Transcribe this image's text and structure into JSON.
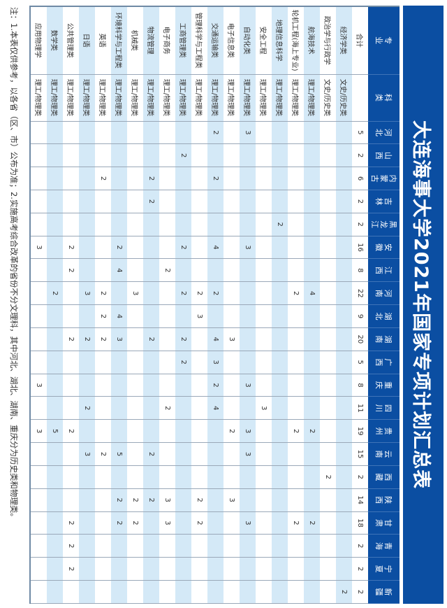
{
  "title": "大连海事大学2021年国家专项计划汇总表",
  "header": {
    "major": "专业",
    "category": "科类"
  },
  "provinces": [
    "河北",
    "山西",
    "内蒙古",
    "吉林",
    "黑龙江",
    "安徽",
    "江西",
    "河南",
    "湖北",
    "湖南",
    "广西",
    "重庆",
    "四川",
    "贵州",
    "云南",
    "西藏",
    "陕西",
    "甘肃",
    "青海",
    "宁夏",
    "新疆"
  ],
  "colors": {
    "header": "#0b4ea2",
    "stripe": "#d4e9f7"
  },
  "rows": [
    {
      "major": "合计",
      "category": "",
      "values": [
        "5",
        "2",
        "6",
        "2",
        "2",
        "16",
        "8",
        "22",
        "9",
        "20",
        "5",
        "8",
        "11",
        "19",
        "15",
        "2",
        "14",
        "18",
        "2",
        "2",
        "2"
      ]
    },
    {
      "major": "经济学类",
      "category": "文史/历史类",
      "values": [
        "",
        "",
        "",
        "",
        "",
        "",
        "",
        "",
        "",
        "",
        "",
        "",
        "",
        "",
        "",
        "",
        "",
        "",
        "",
        "",
        "2"
      ]
    },
    {
      "major": "政治学与行政学",
      "category": "文史/历史类",
      "values": [
        "",
        "",
        "",
        "",
        "",
        "",
        "",
        "",
        "",
        "",
        "",
        "",
        "",
        "",
        "",
        "2",
        "",
        "",
        "",
        "",
        ""
      ]
    },
    {
      "major": "航海技术",
      "category": "理工/物理类",
      "values": [
        "",
        "",
        "",
        "",
        "",
        "",
        "",
        "4",
        "",
        "",
        "",
        "",
        "",
        "2",
        "",
        "",
        "",
        "2",
        "",
        "",
        ""
      ]
    },
    {
      "major": "轮机工程(海上专业)",
      "category": "理工/物理类",
      "values": [
        "",
        "",
        "",
        "",
        "",
        "",
        "",
        "2",
        "",
        "",
        "",
        "",
        "",
        "2",
        "",
        "",
        "",
        "2",
        "",
        "",
        ""
      ]
    },
    {
      "major": "地理信息科学",
      "category": "理工/物理类",
      "values": [
        "",
        "",
        "",
        "",
        "2",
        "",
        "",
        "",
        "",
        "",
        "",
        "",
        "",
        "",
        "",
        "",
        "",
        "",
        "",
        "",
        ""
      ]
    },
    {
      "major": "安全工程",
      "category": "理工/物理类",
      "values": [
        "",
        "",
        "",
        "",
        "",
        "",
        "",
        "",
        "",
        "",
        "",
        "",
        "3",
        "",
        "",
        "",
        "",
        "",
        "",
        "",
        ""
      ]
    },
    {
      "major": "自动化类",
      "category": "理工/物理类",
      "values": [
        "3",
        "",
        "",
        "",
        "",
        "3",
        "",
        "",
        "",
        "",
        "",
        "3",
        "",
        "3",
        "3",
        "",
        "",
        "3",
        "",
        "",
        ""
      ]
    },
    {
      "major": "电子信息类",
      "category": "理工/物理类",
      "values": [
        "",
        "",
        "",
        "",
        "",
        "",
        "",
        "",
        "",
        "3",
        "",
        "",
        "",
        "2",
        "",
        "",
        "3",
        "",
        "",
        "",
        ""
      ]
    },
    {
      "major": "交通运输类",
      "category": "理工/物理类",
      "values": [
        "2",
        "",
        "2",
        "",
        "",
        "4",
        "",
        "2",
        "",
        "4",
        "3",
        "2",
        "4",
        "",
        "",
        "",
        "",
        "",
        "",
        "",
        ""
      ]
    },
    {
      "major": "管理科学与工程类",
      "category": "理工/物理类",
      "values": [
        "",
        "",
        "",
        "",
        "",
        "",
        "",
        "2",
        "3",
        "",
        "",
        "",
        "",
        "",
        "",
        "",
        "2",
        "2",
        "",
        "",
        ""
      ]
    },
    {
      "major": "工商管理类",
      "category": "理工/物理类",
      "values": [
        "",
        "2",
        "",
        "",
        "",
        "2",
        "",
        "2",
        "",
        "2",
        "2",
        "",
        "",
        "",
        "",
        "",
        "",
        "",
        "",
        "",
        ""
      ]
    },
    {
      "major": "电子商务",
      "category": "理工/物理类",
      "values": [
        "",
        "",
        "",
        "",
        "",
        "",
        "2",
        "",
        "",
        "",
        "",
        "",
        "2",
        "",
        "",
        "",
        "3",
        "3",
        "",
        "",
        ""
      ]
    },
    {
      "major": "物流管理",
      "category": "理工/物理类",
      "values": [
        "",
        "",
        "2",
        "2",
        "",
        "",
        "",
        "",
        "",
        "2",
        "",
        "",
        "",
        "",
        "2",
        "",
        "2",
        "",
        "",
        "",
        ""
      ]
    },
    {
      "major": "机械类",
      "category": "理工/物理类",
      "values": [
        "",
        "",
        "",
        "",
        "",
        "",
        "",
        "3",
        "",
        "",
        "",
        "",
        "",
        "",
        "",
        "",
        "2",
        "2",
        "",
        "",
        ""
      ]
    },
    {
      "major": "环境科学与工程类",
      "category": "理工/物理类",
      "values": [
        "",
        "",
        "",
        "",
        "",
        "2",
        "4",
        "",
        "4",
        "3",
        "",
        "",
        "",
        "",
        "5",
        "",
        "2",
        "2",
        "",
        "",
        ""
      ]
    },
    {
      "major": "英语",
      "category": "理工/物理类",
      "values": [
        "",
        "",
        "2",
        "",
        "",
        "",
        "",
        "2",
        "2",
        "2",
        "",
        "",
        "",
        "",
        "2",
        "",
        "",
        "",
        "",
        "",
        ""
      ]
    },
    {
      "major": "日语",
      "category": "理工/物理类",
      "values": [
        "",
        "",
        "",
        "",
        "",
        "",
        "",
        "3",
        "",
        "2",
        "",
        "",
        "2",
        "",
        "3",
        "",
        "",
        "",
        "",
        "",
        ""
      ]
    },
    {
      "major": "公共管理类",
      "category": "理工/物理类",
      "values": [
        "",
        "",
        "",
        "",
        "",
        "2",
        "2",
        "",
        "",
        "2",
        "",
        "",
        "",
        "2",
        "",
        "",
        "",
        "2",
        "2",
        "2",
        ""
      ]
    },
    {
      "major": "数学类",
      "category": "理工/物理类",
      "values": [
        "",
        "",
        "",
        "",
        "",
        "",
        "",
        "2",
        "",
        "",
        "",
        "",
        "",
        "5",
        "",
        "",
        "",
        "",
        "",
        "",
        ""
      ]
    },
    {
      "major": "应用物理学",
      "category": "理工/物理类",
      "values": [
        "",
        "",
        "",
        "",
        "",
        "3",
        "",
        "",
        "",
        "",
        "",
        "3",
        "",
        "3",
        "",
        "",
        "",
        "",
        "",
        "",
        ""
      ]
    }
  ],
  "note": "注：1.本表仅供参考，以各省（区、市）公布为准；2.实施高考综合改革的省份不分文理科，其中河北、湖北、湖南、重庆分为历史类和物理类。"
}
